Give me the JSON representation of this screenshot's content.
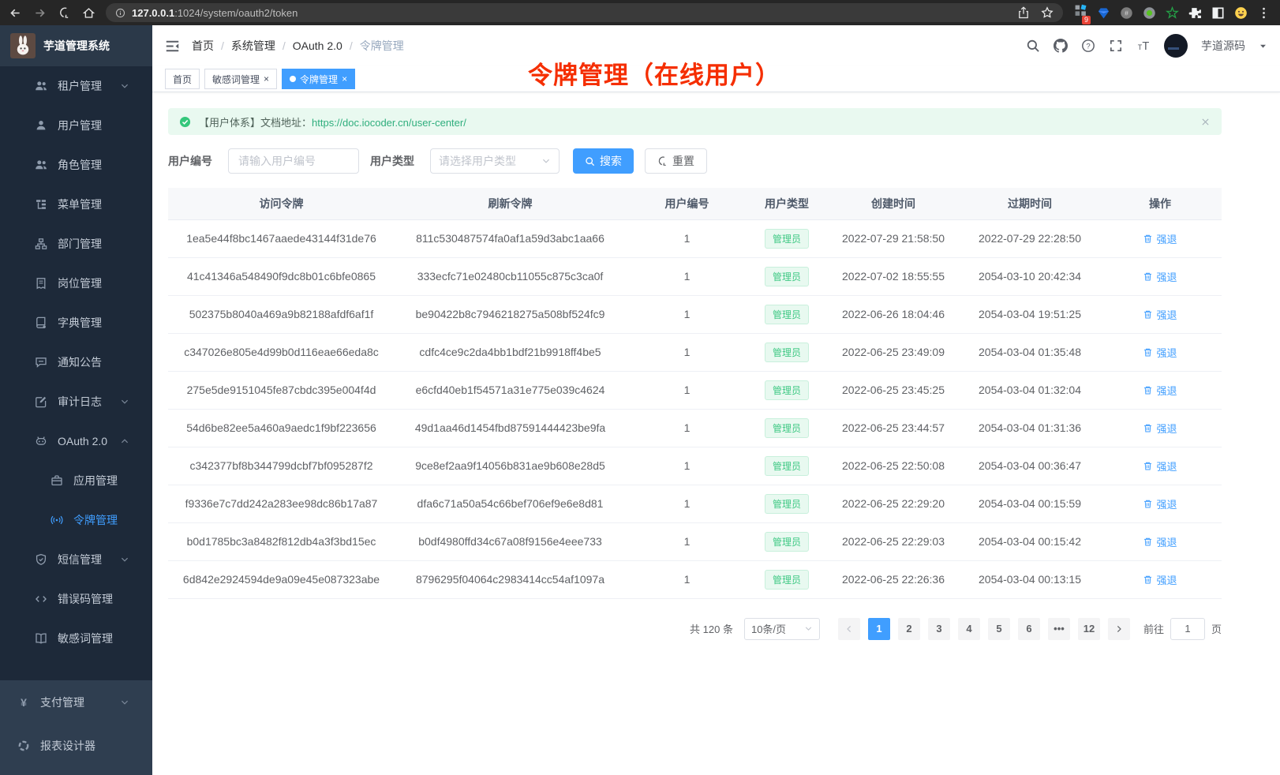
{
  "browser": {
    "url_host": "127.0.0.1",
    "url_path": ":1024/system/oauth2/token"
  },
  "sidebar": {
    "logo_title": "芋道管理系统",
    "menu": [
      {
        "key": "tenant",
        "label": "租户管理",
        "icon": "users",
        "level": 2,
        "chevron": "down"
      },
      {
        "key": "user",
        "label": "用户管理",
        "icon": "user",
        "level": 2
      },
      {
        "key": "role",
        "label": "角色管理",
        "icon": "users",
        "level": 2
      },
      {
        "key": "menu",
        "label": "菜单管理",
        "icon": "tree",
        "level": 2
      },
      {
        "key": "dept",
        "label": "部门管理",
        "icon": "org",
        "level": 2
      },
      {
        "key": "post",
        "label": "岗位管理",
        "icon": "badge",
        "level": 2
      },
      {
        "key": "dict",
        "label": "字典管理",
        "icon": "dict",
        "level": 2
      },
      {
        "key": "notice",
        "label": "通知公告",
        "icon": "message",
        "level": 2
      },
      {
        "key": "audit",
        "label": "审计日志",
        "icon": "edit",
        "level": 2,
        "chevron": "down"
      },
      {
        "key": "oauth2",
        "label": "OAuth 2.0",
        "icon": "robot",
        "level": 2,
        "chevron": "up"
      },
      {
        "key": "oauth-app",
        "label": "应用管理",
        "icon": "briefcase",
        "level": 3
      },
      {
        "key": "token",
        "label": "令牌管理",
        "icon": "signal",
        "level": 3,
        "active": true
      },
      {
        "key": "sms",
        "label": "短信管理",
        "icon": "shield",
        "level": 2,
        "chevron": "down"
      },
      {
        "key": "errcode",
        "label": "错误码管理",
        "icon": "code",
        "level": 2
      },
      {
        "key": "sensitive",
        "label": "敏感词管理",
        "icon": "bookopen",
        "level": 2
      }
    ],
    "bottom_menu": [
      {
        "key": "pay",
        "label": "支付管理",
        "icon": "yen",
        "level": 1,
        "chevron": "down"
      },
      {
        "key": "report",
        "label": "报表设计器",
        "icon": "report",
        "level": 1
      }
    ]
  },
  "header": {
    "breadcrumb": [
      "首页",
      "系统管理",
      "OAuth 2.0",
      "令牌管理"
    ],
    "username": "芋道源码"
  },
  "tabs": [
    {
      "label": "首页",
      "closable": false,
      "active": false
    },
    {
      "label": "敏感词管理",
      "closable": true,
      "active": false
    },
    {
      "label": "令牌管理",
      "closable": true,
      "active": true
    }
  ],
  "annotation": {
    "text": "令牌管理（在线用户）"
  },
  "alert": {
    "prefix": "【用户体系】文档地址：",
    "link": "https://doc.iocoder.cn/user-center/"
  },
  "filters": {
    "user_id_label": "用户编号",
    "user_id_placeholder": "请输入用户编号",
    "user_type_label": "用户类型",
    "user_type_placeholder": "请选择用户类型",
    "search_label": "搜索",
    "reset_label": "重置"
  },
  "table": {
    "columns": [
      "访问令牌",
      "刷新令牌",
      "用户编号",
      "用户类型",
      "创建时间",
      "过期时间",
      "操作"
    ],
    "action_label": "强退",
    "rows": [
      {
        "access_token": "1ea5e44f8bc1467aaede43144f31de76",
        "refresh_token": "811c530487574fa0af1a59d3abc1aa66",
        "user_id": "1",
        "user_type": "管理员",
        "created": "2022-07-29 21:58:50",
        "expires": "2022-07-29 22:28:50"
      },
      {
        "access_token": "41c41346a548490f9dc8b01c6bfe0865",
        "refresh_token": "333ecfc71e02480cb11055c875c3ca0f",
        "user_id": "1",
        "user_type": "管理员",
        "created": "2022-07-02 18:55:55",
        "expires": "2054-03-10 20:42:34"
      },
      {
        "access_token": "502375b8040a469a9b82188afdf6af1f",
        "refresh_token": "be90422b8c7946218275a508bf524fc9",
        "user_id": "1",
        "user_type": "管理员",
        "created": "2022-06-26 18:04:46",
        "expires": "2054-03-04 19:51:25"
      },
      {
        "access_token": "c347026e805e4d99b0d116eae66eda8c",
        "refresh_token": "cdfc4ce9c2da4bb1bdf21b9918ff4be5",
        "user_id": "1",
        "user_type": "管理员",
        "created": "2022-06-25 23:49:09",
        "expires": "2054-03-04 01:35:48"
      },
      {
        "access_token": "275e5de9151045fe87cbdc395e004f4d",
        "refresh_token": "e6cfd40eb1f54571a31e775e039c4624",
        "user_id": "1",
        "user_type": "管理员",
        "created": "2022-06-25 23:45:25",
        "expires": "2054-03-04 01:32:04"
      },
      {
        "access_token": "54d6be82ee5a460a9aedc1f9bf223656",
        "refresh_token": "49d1aa46d1454fbd87591444423be9fa",
        "user_id": "1",
        "user_type": "管理员",
        "created": "2022-06-25 23:44:57",
        "expires": "2054-03-04 01:31:36"
      },
      {
        "access_token": "c342377bf8b344799dcbf7bf095287f2",
        "refresh_token": "9ce8ef2aa9f14056b831ae9b608e28d5",
        "user_id": "1",
        "user_type": "管理员",
        "created": "2022-06-25 22:50:08",
        "expires": "2054-03-04 00:36:47"
      },
      {
        "access_token": "f9336e7c7dd242a283ee98dc86b17a87",
        "refresh_token": "dfa6c71a50a54c66bef706ef9e6e8d81",
        "user_id": "1",
        "user_type": "管理员",
        "created": "2022-06-25 22:29:20",
        "expires": "2054-03-04 00:15:59"
      },
      {
        "access_token": "b0d1785bc3a8482f812db4a3f3bd15ec",
        "refresh_token": "b0df4980ffd34c67a08f9156e4eee733",
        "user_id": "1",
        "user_type": "管理员",
        "created": "2022-06-25 22:29:03",
        "expires": "2054-03-04 00:15:42"
      },
      {
        "access_token": "6d842e2924594de9a09e45e087323abe",
        "refresh_token": "8796295f04064c2983414cc54af1097a",
        "user_id": "1",
        "user_type": "管理员",
        "created": "2022-06-25 22:26:36",
        "expires": "2054-03-04 00:13:15"
      }
    ]
  },
  "pagination": {
    "total": "共 120 条",
    "page_size": "10条/页",
    "pages": [
      "1",
      "2",
      "3",
      "4",
      "5",
      "6",
      "•••",
      "12"
    ],
    "active_page": "1",
    "goto_label": "前往",
    "goto_value": "1",
    "goto_suffix": "页"
  },
  "colors": {
    "accent": "#409eff",
    "badge_green": "#3fc984",
    "annotation_red": "#f52e00",
    "alert_link_green": "#2fae7d",
    "sidebar_bg": "#1d2939",
    "sidebar_bottom_bg": "#2f3e50"
  }
}
